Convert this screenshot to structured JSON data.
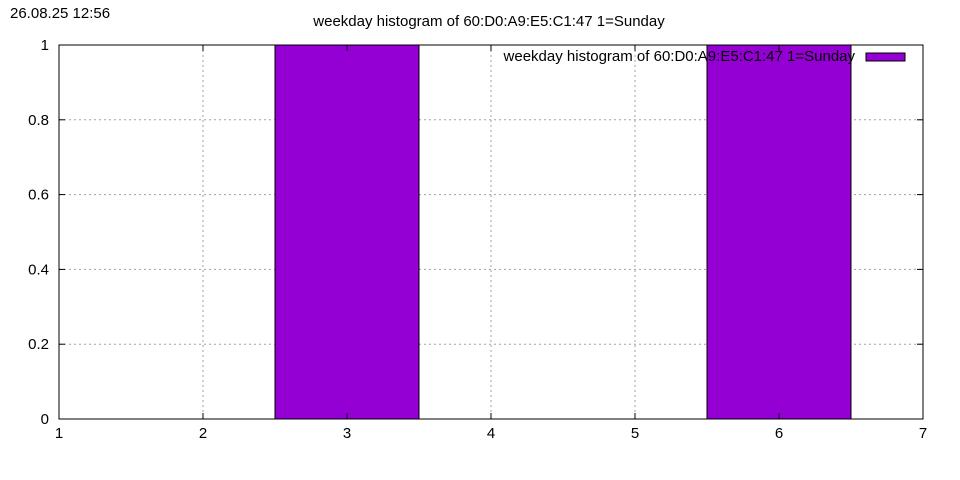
{
  "timestamp": "26.08.25 12:56",
  "chart_data": {
    "type": "bar",
    "title": "weekday histogram of 60:D0:A9:E5:C1:47 1=Sunday",
    "xlabel": "",
    "ylabel": "",
    "xlim": [
      1,
      7
    ],
    "ylim": [
      0,
      1
    ],
    "x_ticks": [
      "1",
      "2",
      "3",
      "4",
      "5",
      "6",
      "7"
    ],
    "y_ticks": [
      "0",
      "0.2",
      "0.4",
      "0.6",
      "0.8",
      "1"
    ],
    "grid": true,
    "legend_position": "top-right",
    "bar_width": 1,
    "series": [
      {
        "name": "weekday histogram of 60:D0:A9:E5:C1:47 1=Sunday",
        "color": "#9400d3",
        "x": [
          3,
          6
        ],
        "values": [
          1,
          1
        ]
      }
    ]
  }
}
